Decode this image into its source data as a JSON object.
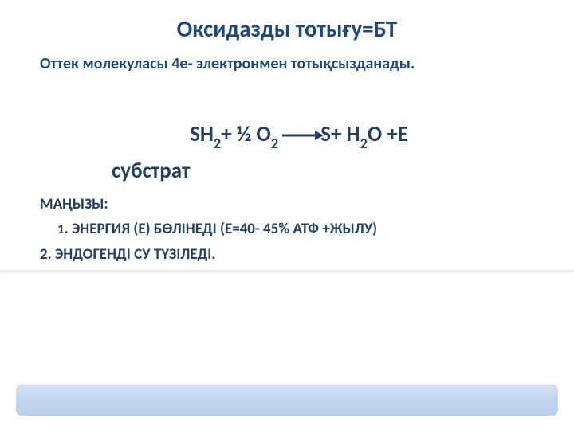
{
  "colors": {
    "title": "#1f497d",
    "subtitle": "#1f497d",
    "equation": "#254061",
    "substrate": "#254061",
    "importance": "#254061",
    "point1": "#254061",
    "point2": "#254061"
  },
  "title": "Оксидазды тотығу=БТ",
  "subtitle": "Оттек молекуласы 4е- электронмен тотықсызданады.",
  "equation": {
    "sh": "SH",
    "sh_sub": "2",
    "plus1": "+ ½ O",
    "o_sub": "2",
    "s_right": "S+ H",
    "h_sub": "2",
    "end": "O +Е"
  },
  "substrate": "субстрат",
  "importance": "МАҢЫЗЫ:",
  "point1_num": "1",
  "point1": ". ЭНЕРГИЯ (Е) БӨЛІНЕДІ (Е=40- 45% АТФ +ЖЫЛУ)",
  "point2": "2. ЭНДОГЕНДІ СУ  ТҮЗІЛЕДІ."
}
